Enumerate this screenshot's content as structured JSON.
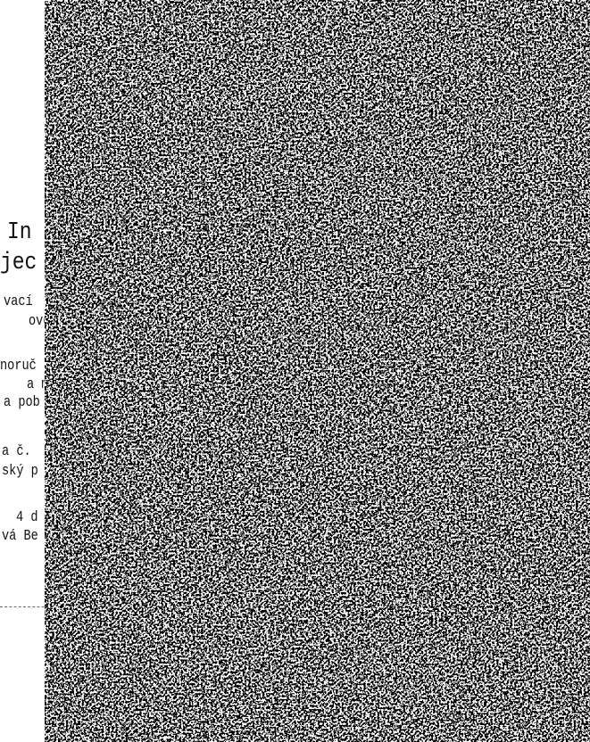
{
  "document": {
    "heading": [
      "In",
      "jec"
    ],
    "lines": [
      "vací",
      "ově",
      "noruč",
      "a mi",
      "a pob",
      "a č.",
      "ský p",
      "4 d",
      "vá Be"
    ]
  }
}
